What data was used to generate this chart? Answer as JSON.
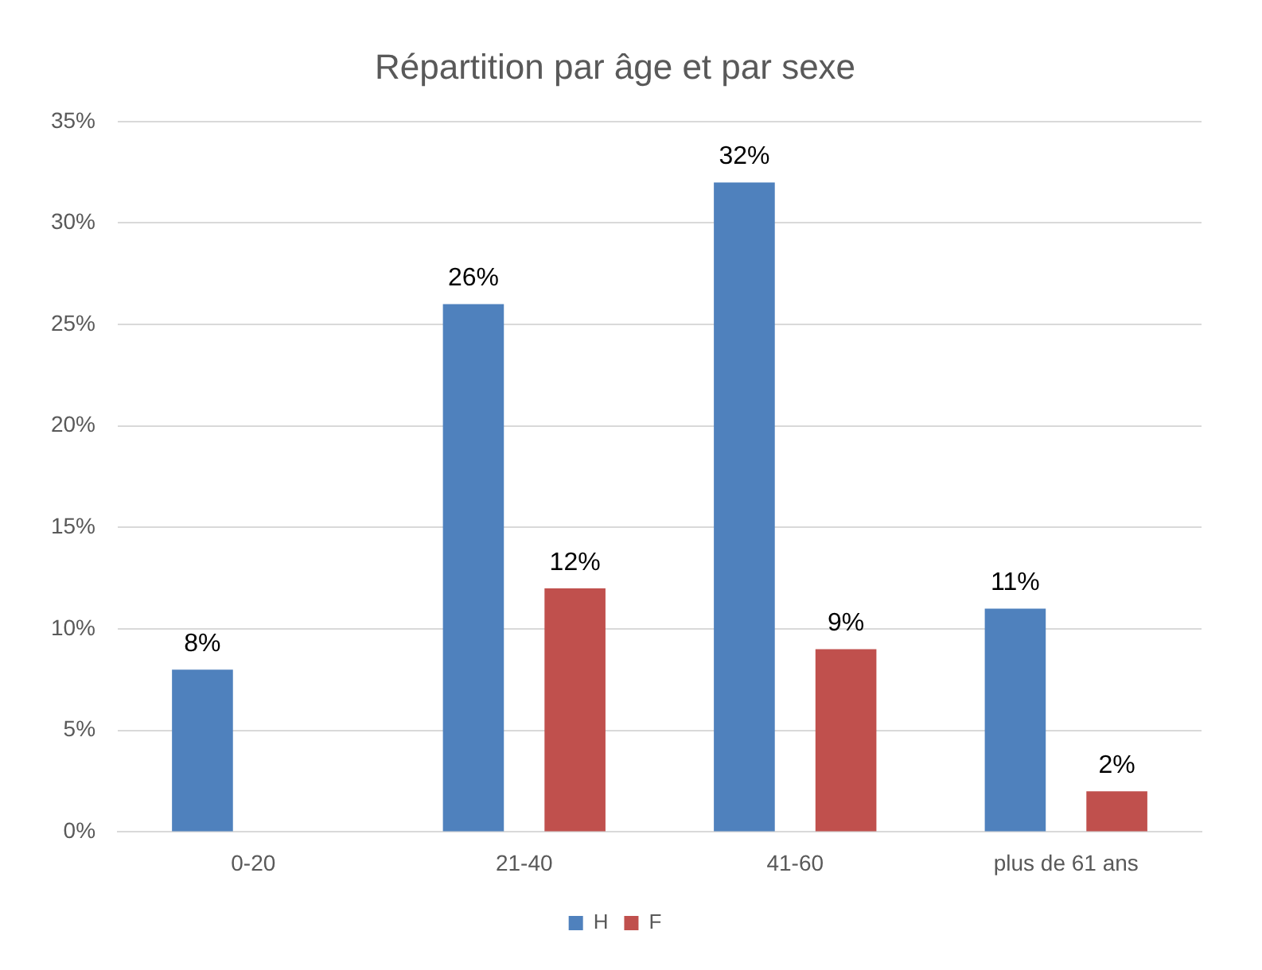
{
  "chart_data": {
    "type": "bar",
    "title": "Répartition par âge et par sexe",
    "categories": [
      "0-20",
      "21-40",
      "41-60",
      "plus de 61 ans"
    ],
    "series": [
      {
        "name": "H",
        "color": "#4f81bd",
        "values": [
          8,
          26,
          32,
          11
        ],
        "value_labels": [
          "8%",
          "26%",
          "32%",
          "11%"
        ]
      },
      {
        "name": "F",
        "color": "#c0504d",
        "values": [
          null,
          12,
          9,
          2
        ],
        "value_labels": [
          null,
          "12%",
          "9%",
          "2%"
        ]
      }
    ],
    "ylim": [
      0,
      35
    ],
    "yticks": [
      {
        "value": 0,
        "label": "0%"
      },
      {
        "value": 5,
        "label": "5%"
      },
      {
        "value": 10,
        "label": "10%"
      },
      {
        "value": 15,
        "label": "15%"
      },
      {
        "value": 20,
        "label": "20%"
      },
      {
        "value": 25,
        "label": "25%"
      },
      {
        "value": 30,
        "label": "30%"
      },
      {
        "value": 35,
        "label": "35%"
      }
    ],
    "grid": "y",
    "legend": "bottom"
  }
}
